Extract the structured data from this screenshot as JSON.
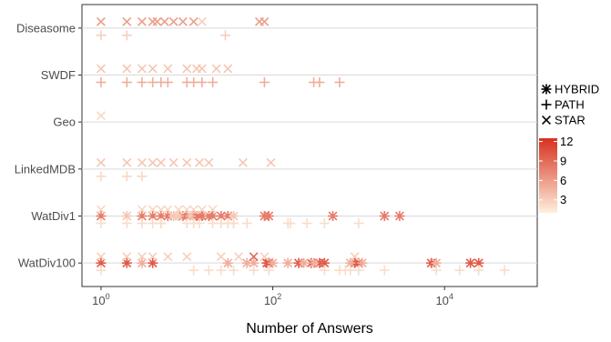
{
  "chart_data": {
    "type": "scatter",
    "xlabel": "Number of Answers",
    "ylabel": "",
    "x_scale": "log10",
    "xlim": [
      0.6,
      120000
    ],
    "x_ticks": [
      {
        "value": 1,
        "base": "10",
        "exp": "0"
      },
      {
        "value": 100,
        "base": "10",
        "exp": "2"
      },
      {
        "value": 10000,
        "base": "10",
        "exp": "4"
      }
    ],
    "categories": [
      "Diseasome",
      "SWDF",
      "Geo",
      "LinkedMDB",
      "WatDiv1",
      "WatDiv100"
    ],
    "shape_legend": [
      {
        "shape": "HYBRID",
        "label": "HYBRID"
      },
      {
        "shape": "PATH",
        "label": "PATH"
      },
      {
        "shape": "STAR",
        "label": "STAR"
      }
    ],
    "color_scale": {
      "min": 1,
      "max": 12.5,
      "ticks": [
        "12",
        "9",
        "6",
        "3"
      ],
      "tick_values": [
        12,
        9,
        6,
        3
      ],
      "low_color": "#fdf0dc",
      "high_color": "#d7301f"
    },
    "grid": true,
    "series": [
      {
        "category": "Diseasome",
        "shape": "STAR",
        "color_value": 6,
        "x": [
          1,
          2,
          3,
          4,
          4.5,
          5.5,
          7,
          9,
          12,
          70,
          80
        ]
      },
      {
        "category": "Diseasome",
        "shape": "STAR",
        "color_value": 3,
        "x": [
          15
        ]
      },
      {
        "category": "Diseasome",
        "shape": "PATH",
        "color_value": 3,
        "x": [
          1,
          2,
          28
        ]
      },
      {
        "category": "SWDF",
        "shape": "STAR",
        "color_value": 3.5,
        "x": [
          1,
          2,
          3,
          4,
          6,
          10,
          13,
          15,
          22,
          30
        ]
      },
      {
        "category": "SWDF",
        "shape": "PATH",
        "color_value": 5,
        "x": [
          1,
          2,
          3,
          4,
          5,
          6,
          10,
          12,
          15,
          20,
          80,
          300,
          350,
          600
        ]
      },
      {
        "category": "Geo",
        "shape": "STAR",
        "color_value": 2.5,
        "x": [
          1
        ]
      },
      {
        "category": "LinkedMDB",
        "shape": "STAR",
        "color_value": 3.5,
        "x": [
          1,
          2,
          3,
          4,
          5,
          7,
          10,
          14,
          18,
          45,
          95
        ]
      },
      {
        "category": "LinkedMDB",
        "shape": "PATH",
        "color_value": 2.5,
        "x": [
          1,
          2,
          3
        ]
      },
      {
        "category": "WatDiv1",
        "shape": "HYBRID",
        "color_value": 8,
        "x": [
          1,
          3,
          4,
          5,
          6,
          9,
          10,
          12,
          13,
          14,
          15,
          18,
          20,
          25,
          30,
          80,
          90,
          500,
          2000,
          3000
        ]
      },
      {
        "category": "WatDiv1",
        "shape": "HYBRID",
        "color_value": 3.5,
        "x": [
          2,
          7,
          8,
          11,
          35
        ]
      },
      {
        "category": "WatDiv1",
        "shape": "STAR",
        "color_value": 2.5,
        "x": [
          1,
          3,
          4,
          5,
          6,
          8,
          10,
          12,
          15,
          20
        ]
      },
      {
        "category": "WatDiv1",
        "shape": "PATH",
        "color_value": 2.2,
        "x": [
          1,
          2,
          3,
          5,
          10,
          12,
          20,
          25,
          30,
          35,
          50,
          150,
          160,
          250,
          400,
          1000
        ]
      },
      {
        "category": "WatDiv1",
        "shape": "PATH",
        "color_value": 2.2,
        "x": [
          4,
          5,
          14,
          30,
          35
        ]
      },
      {
        "category": "WatDiv100",
        "shape": "HYBRID",
        "color_value": 10,
        "x": [
          1,
          2,
          4,
          85,
          90,
          200,
          280,
          350,
          400,
          900,
          1000,
          7000,
          20000,
          25000
        ]
      },
      {
        "category": "WatDiv100",
        "shape": "HYBRID",
        "color_value": 5,
        "x": [
          3,
          30,
          50,
          60,
          100,
          150,
          230,
          300,
          800,
          1100,
          8000
        ]
      },
      {
        "category": "WatDiv100",
        "shape": "STAR",
        "color_value": 3,
        "x": [
          1,
          2,
          3,
          4,
          6,
          10,
          25,
          40,
          80,
          900
        ]
      },
      {
        "category": "WatDiv100",
        "shape": "STAR",
        "color_value": 9,
        "x": [
          60
        ]
      },
      {
        "category": "WatDiv100",
        "shape": "PATH",
        "color_value": 2.2,
        "x": [
          1,
          12,
          18,
          35,
          60,
          90,
          400,
          600,
          700,
          800,
          1000,
          8000,
          15000,
          25000,
          50000
        ]
      },
      {
        "category": "WatDiv100",
        "shape": "PATH",
        "color_value": 2.2,
        "x": [
          25,
          2000
        ]
      }
    ]
  }
}
